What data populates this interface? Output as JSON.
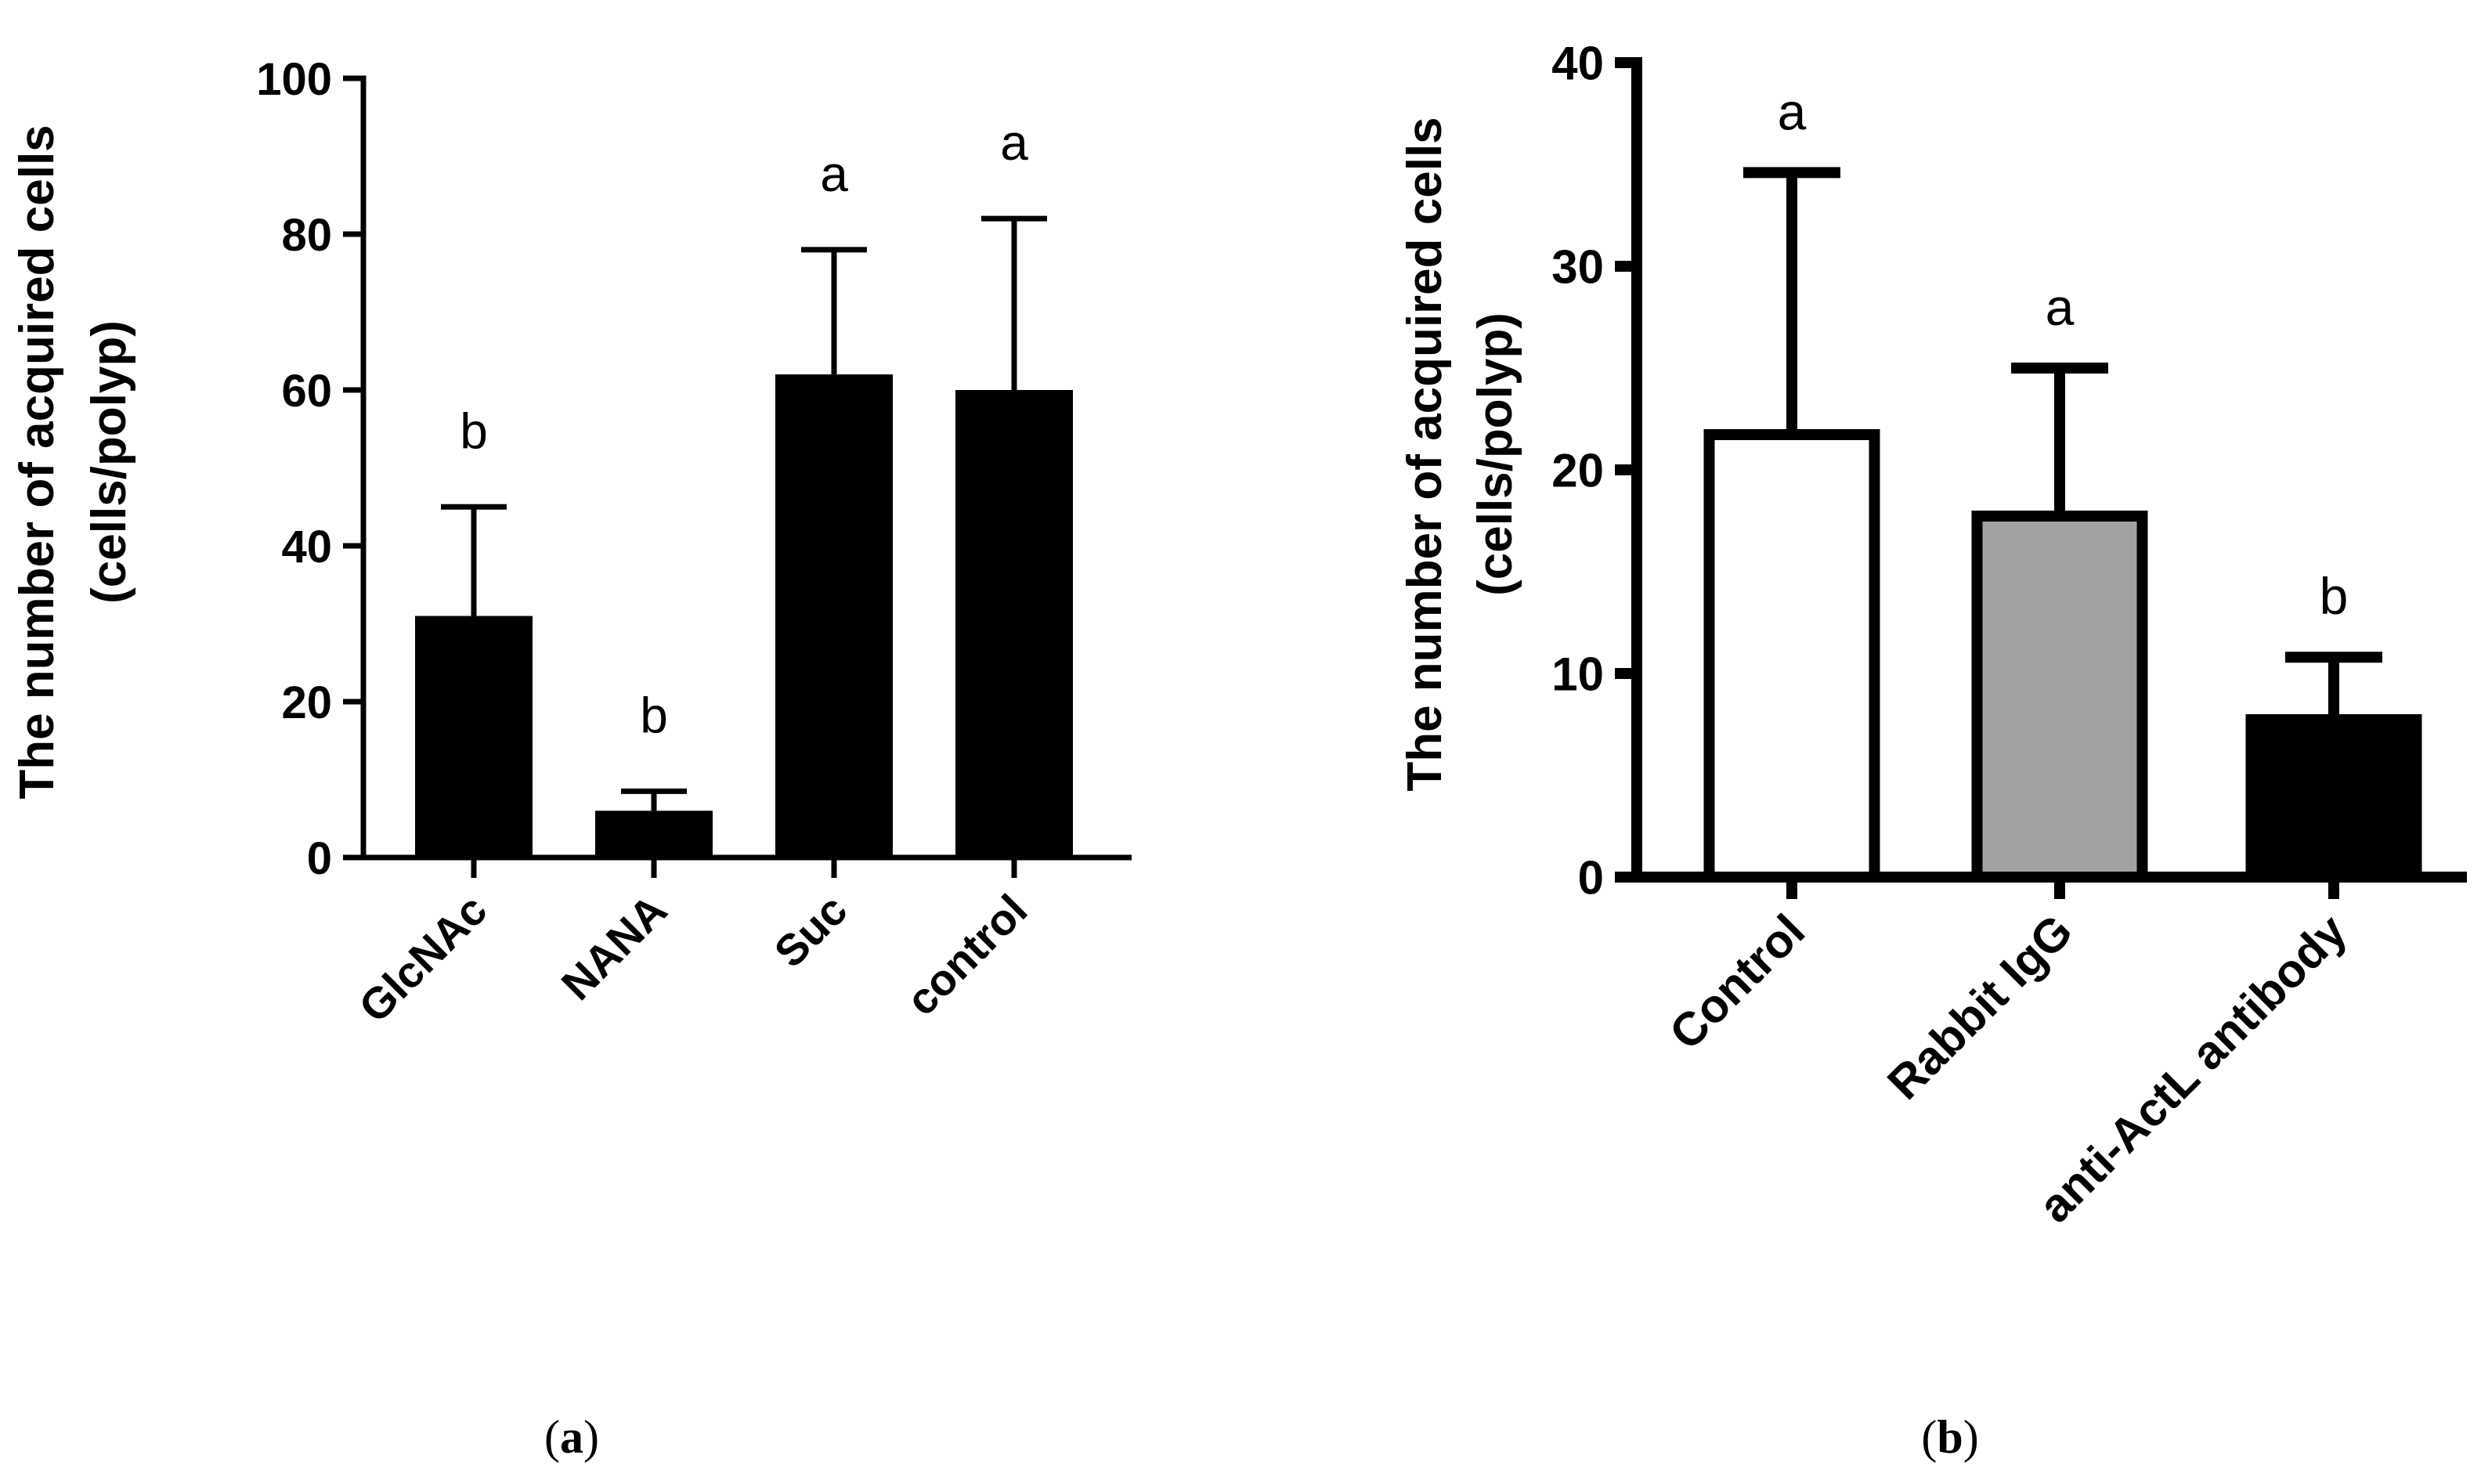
{
  "chart_data": [
    {
      "type": "bar",
      "panel_label": "(a)",
      "panel_letter": "a",
      "categories": [
        "GlcNAc",
        "NANA",
        "Suc",
        "control"
      ],
      "values": [
        31,
        6,
        62,
        60
      ],
      "error_upper": [
        45,
        8.5,
        78,
        82
      ],
      "significance": [
        "b",
        "b",
        "a",
        "a"
      ],
      "bar_fills": [
        "#000000",
        "#000000",
        "#000000",
        "#000000"
      ],
      "ylabel_line1": "The number of acquired cells",
      "ylabel_line2": "(cells/polyp)",
      "ylim": [
        0,
        100
      ],
      "yticks": [
        0,
        20,
        40,
        60,
        80,
        100
      ],
      "grid": false
    },
    {
      "type": "bar",
      "panel_label": "(b)",
      "panel_letter": "b",
      "categories": [
        "Control",
        "Rabbit IgG",
        "anti-ActL antibody"
      ],
      "values": [
        22,
        18,
        8
      ],
      "error_upper": [
        34.6,
        25,
        10.8
      ],
      "significance": [
        "a",
        "a",
        "b"
      ],
      "bar_fills": [
        "#ffffff",
        "#a2a2a4",
        "#000000"
      ],
      "ylabel_line1": "The number of acquired cells",
      "ylabel_line2": "(cells/polyp)",
      "ylim": [
        0,
        40
      ],
      "yticks": [
        0,
        10,
        20,
        30,
        40
      ],
      "grid": false
    }
  ]
}
